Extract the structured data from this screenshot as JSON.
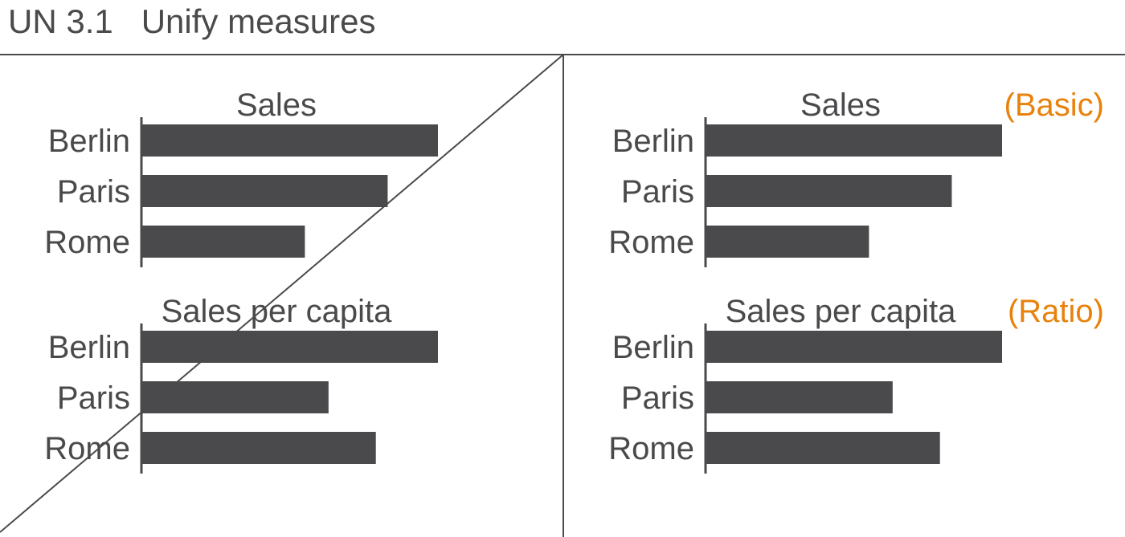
{
  "page": {
    "title": "UN 3.1   Unify measures"
  },
  "colors": {
    "bar": "#4a4a4c",
    "text": "#4a4a4c",
    "accent": "#e8820c",
    "rule": "#4a4a4c"
  },
  "chart_data": [
    {
      "type": "bar",
      "orientation": "horizontal",
      "panel": "left",
      "title": "Sales",
      "categories": [
        "Berlin",
        "Paris",
        "Rome"
      ],
      "values": [
        100,
        83,
        55
      ],
      "xlim": [
        0,
        100
      ]
    },
    {
      "type": "bar",
      "orientation": "horizontal",
      "panel": "left",
      "title": "Sales per capita",
      "categories": [
        "Berlin",
        "Paris",
        "Rome"
      ],
      "values": [
        100,
        63,
        79
      ],
      "xlim": [
        0,
        100
      ]
    },
    {
      "type": "bar",
      "orientation": "horizontal",
      "panel": "right",
      "title": "Sales",
      "tag": "(Basic)",
      "categories": [
        "Berlin",
        "Paris",
        "Rome"
      ],
      "values": [
        100,
        83,
        55
      ],
      "xlim": [
        0,
        100
      ]
    },
    {
      "type": "bar",
      "orientation": "horizontal",
      "panel": "right",
      "title": "Sales per capita",
      "tag": "(Ratio)",
      "categories": [
        "Berlin",
        "Paris",
        "Rome"
      ],
      "values": [
        100,
        63,
        79
      ],
      "xlim": [
        0,
        100
      ]
    }
  ]
}
